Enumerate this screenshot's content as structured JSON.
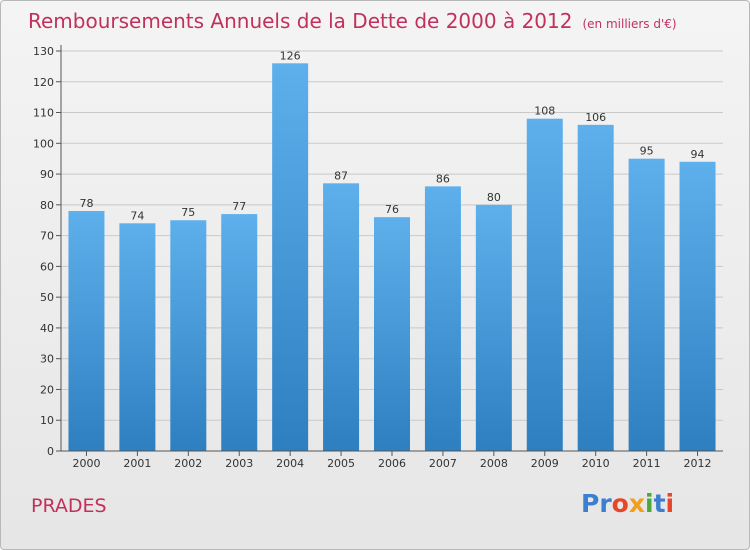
{
  "title": "Remboursements Annuels de la Dette de 2000 à 2012",
  "unit_note": "(en milliers d'€)",
  "place": "PRADES",
  "logo": {
    "text": "Proxiti",
    "letters": [
      "Pr",
      "o",
      "x",
      "i",
      "t",
      "i"
    ]
  },
  "colors": {
    "title": "#c2305c",
    "bar_top": "#5eb0ec",
    "bar_bottom": "#2d7fc0",
    "grid": "#c9c9c9"
  },
  "chart_data": {
    "type": "bar",
    "categories": [
      "2000",
      "2001",
      "2002",
      "2003",
      "2004",
      "2005",
      "2006",
      "2007",
      "2008",
      "2009",
      "2010",
      "2011",
      "2012"
    ],
    "values": [
      78,
      74,
      75,
      77,
      126,
      87,
      76,
      86,
      80,
      108,
      106,
      95,
      94
    ],
    "ylim": [
      0,
      130
    ],
    "yticks": [
      0,
      10,
      20,
      30,
      40,
      50,
      60,
      70,
      80,
      90,
      100,
      110,
      120,
      130
    ],
    "grid": true,
    "data_labels": true
  }
}
